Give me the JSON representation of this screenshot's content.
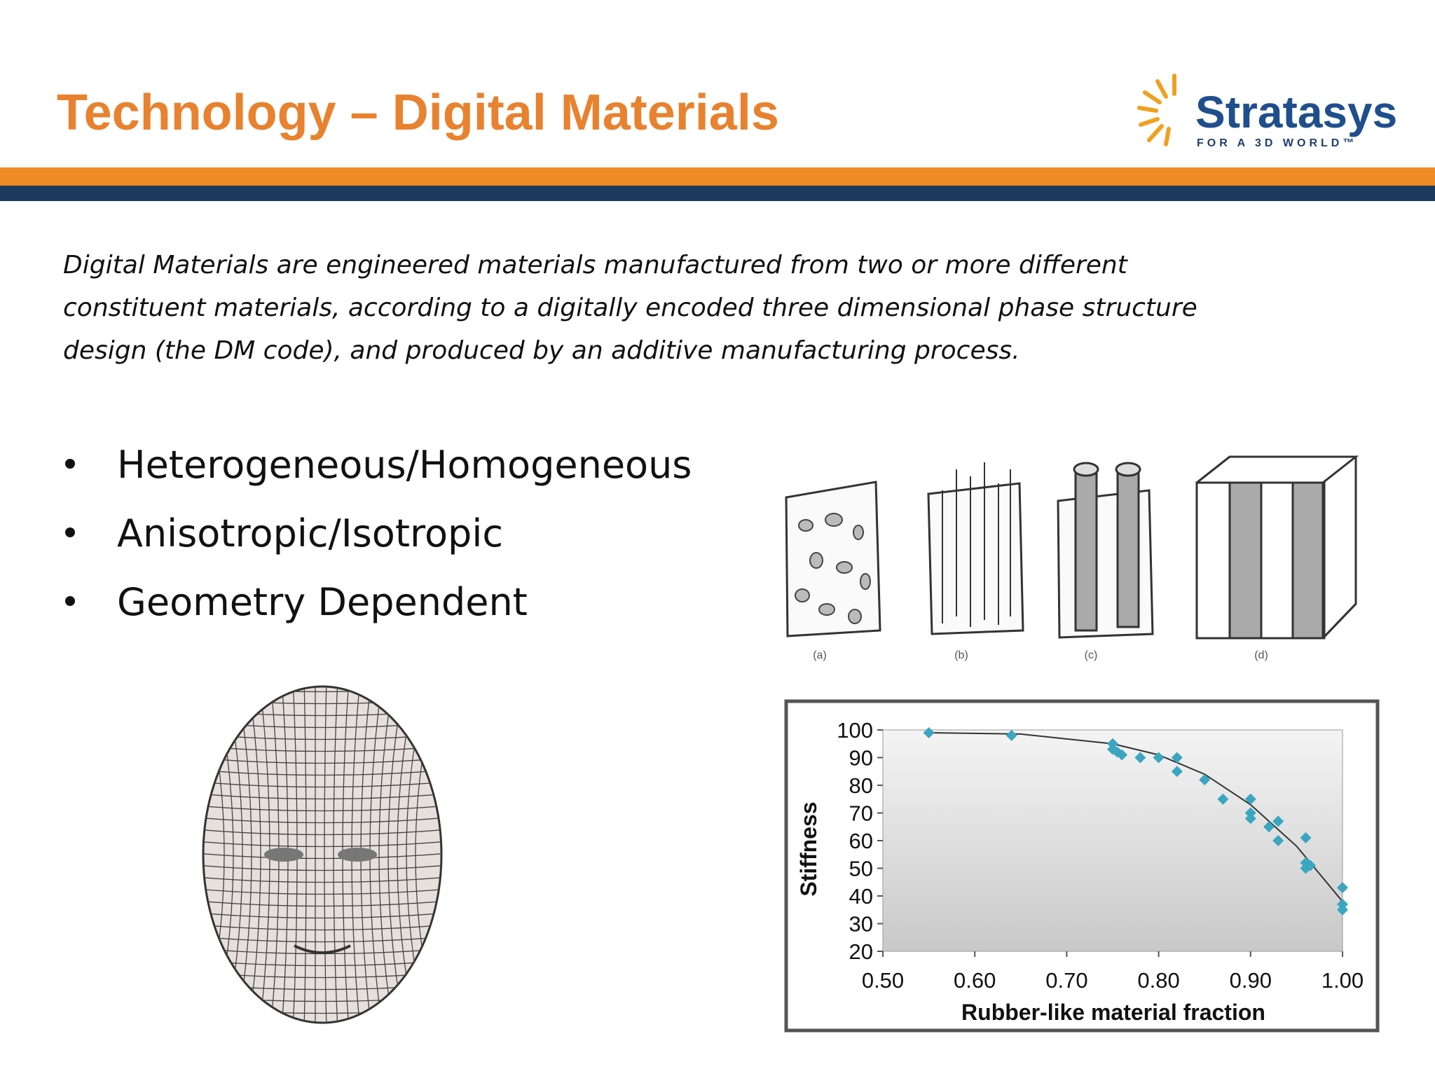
{
  "header": {
    "title": "Technology – Digital Materials"
  },
  "logo": {
    "name": "Stratasys",
    "tagline": "FOR A 3D WORLD™"
  },
  "intro": {
    "lines": [
      "Digital Materials are engineered materials manufactured from two or more different",
      "constituent materials, according to a digitally encoded three dimensional phase structure",
      "design (the DM code), and produced by an additive manufacturing process."
    ]
  },
  "bullets": [
    "Heterogeneous/Homogeneous",
    "Anisotropic/Isotropic",
    "Geometry Dependent"
  ],
  "figures": {
    "labels": [
      "(a)",
      "(b)",
      "(c)",
      "(d)"
    ]
  },
  "chart_data": {
    "type": "scatter",
    "x_label": "Rubber-like material fraction",
    "y_label": "Stiffness",
    "x": [
      0.55,
      0.64,
      0.75,
      0.75,
      0.755,
      0.76,
      0.78,
      0.8,
      0.82,
      0.82,
      0.85,
      0.87,
      0.9,
      0.9,
      0.9,
      0.92,
      0.93,
      0.93,
      0.96,
      0.96,
      0.96,
      0.965,
      1.0,
      1.0,
      1.0
    ],
    "values": [
      99,
      98,
      95,
      93,
      92,
      91,
      90,
      90,
      90,
      85,
      82,
      75,
      75,
      70,
      68,
      65,
      67,
      60,
      61,
      52,
      50,
      51,
      43,
      37,
      35
    ],
    "color": "#3aa6c0",
    "trendline": {
      "x": [
        0.55,
        0.65,
        0.75,
        0.8,
        0.85,
        0.9,
        0.95,
        1.0
      ],
      "values": [
        99,
        98.5,
        95,
        91,
        84,
        73,
        58,
        38
      ],
      "color": "#333333"
    },
    "xlim": [
      0.5,
      1.0
    ],
    "xticks": [
      {
        "value": 0.5,
        "label": "0.50"
      },
      {
        "value": 0.6,
        "label": "0.60"
      },
      {
        "value": 0.7,
        "label": "0.70"
      },
      {
        "value": 0.8,
        "label": "0.80"
      },
      {
        "value": 0.9,
        "label": "0.90"
      },
      {
        "value": 1.0,
        "label": "1.00"
      }
    ],
    "ylim": [
      20,
      100
    ],
    "yticks": [
      20,
      30,
      40,
      50,
      60,
      70,
      80,
      90,
      100
    ]
  }
}
